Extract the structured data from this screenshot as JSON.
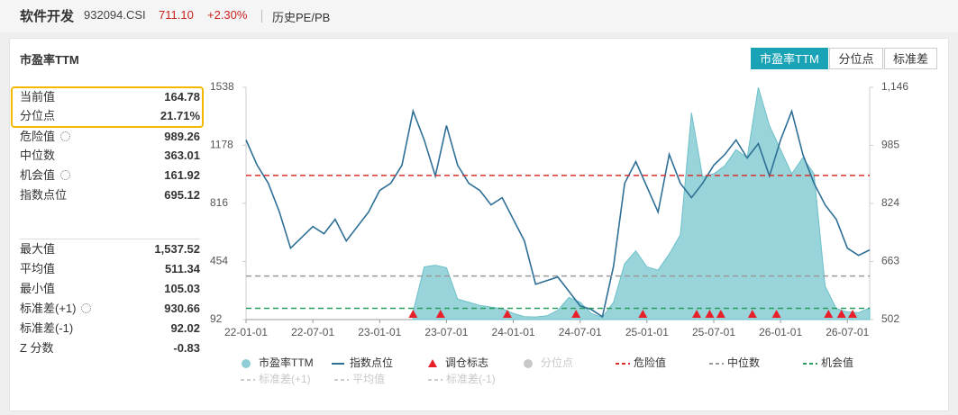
{
  "header": {
    "name": "软件开发",
    "code": "932094.CSI",
    "price": "711.10",
    "change": "+2.30%",
    "link": "历史PE/PB"
  },
  "panel_title": "市盈率TTM",
  "tabs": [
    "市盈率TTM",
    "分位点",
    "标准差"
  ],
  "stats": {
    "current_label": "当前值",
    "percentile_label": "分位点",
    "percentile": "21.71%",
    "max_label": "最大值",
    "max": "1,537.52",
    "min_label": "最小值",
    "min": 105.03,
    "z_label": "Z 分数",
    "z": -0.83
  },
  "chart_data": {
    "type": "line",
    "x": [
      "22-01-01",
      "22-02-01",
      "22-03-01",
      "22-04-01",
      "22-05-01",
      "22-06-01",
      "22-07-01",
      "22-08-01",
      "22-09-01",
      "22-10-01",
      "22-11-01",
      "22-12-01",
      "23-01-01",
      "23-02-01",
      "23-03-01",
      "23-04-01",
      "23-05-01",
      "23-06-01",
      "23-07-01",
      "23-08-01",
      "23-09-01",
      "23-10-01",
      "23-11-01",
      "23-12-01",
      "24-01-01",
      "24-02-01",
      "24-03-01",
      "24-04-01",
      "24-05-01",
      "24-06-01",
      "24-07-01",
      "24-08-01",
      "24-09-01",
      "24-10-01",
      "24-11-01",
      "24-12-01",
      "25-01-01",
      "25-02-01",
      "25-03-01",
      "25-04-01",
      "25-05-01",
      "25-06-01",
      "25-07-01",
      "25-08-01",
      "25-09-01",
      "25-10-01",
      "25-11-01",
      "25-12-01",
      "26-01-01",
      "26-02-01",
      "26-03-01",
      "26-04-01",
      "26-05-01",
      "26-06-01",
      "26-07-01",
      "26-08-01",
      "26-09-01"
    ],
    "xlim": [
      "22-01-01",
      "26-09-01"
    ],
    "xticks": [
      "22-01-01",
      "22-07-01",
      "23-01-01",
      "23-07-01",
      "24-01-01",
      "24-07-01",
      "25-01-01",
      "25-07-01",
      "26-01-01",
      "26-07-01"
    ],
    "ylim": [
      92,
      1538
    ],
    "yticks": [
      92,
      454,
      816,
      1178,
      1538
    ],
    "y2lim": [
      502,
      1146
    ],
    "y2ticks": [
      502,
      663,
      824,
      985,
      {
        "value": 1146,
        "label": "1,146"
      }
    ],
    "series": [
      {
        "name": "市盈率TTM",
        "color": "#8ecfd6",
        "axis": "y",
        "values": [
          null,
          null,
          null,
          null,
          null,
          null,
          null,
          null,
          null,
          null,
          null,
          null,
          null,
          null,
          null,
          140,
          420,
          430,
          415,
          220,
          200,
          180,
          170,
          160,
          130,
          110,
          108,
          115,
          150,
          230,
          200,
          130,
          105.03,
          200,
          440,
          520,
          420,
          400,
          500,
          620,
          1380,
          980,
          1000,
          1050,
          1150,
          1100,
          1537.52,
          1300,
          1150,
          1000,
          1100,
          1000,
          300,
          160,
          140,
          135,
          164.78
        ]
      },
      {
        "name": "指数点位",
        "color": "#2e6f96",
        "axis": "y2",
        "values": [
          1000,
          930,
          880,
          800,
          700,
          730,
          760,
          740,
          780,
          720,
          760,
          800,
          860,
          880,
          930,
          1080,
          1000,
          900,
          1040,
          930,
          880,
          860,
          820,
          840,
          780,
          720,
          600,
          610,
          620,
          580,
          540,
          530,
          510,
          650,
          880,
          940,
          870,
          800,
          960,
          880,
          840,
          880,
          930,
          960,
          1000,
          950,
          990,
          900,
          1000,
          1080,
          960,
          880,
          820,
          780,
          700,
          680,
          695.12
        ]
      }
    ],
    "markers": {
      "name": "调仓标志",
      "color": "#e8202a",
      "x": [
        "23-04-01",
        "23-06-15",
        "23-12-15",
        "24-06-20",
        "24-12-20",
        "25-05-15",
        "25-06-20",
        "25-07-20",
        "25-10-15",
        "25-12-20",
        "26-05-10",
        "26-06-15",
        "26-07-15"
      ]
    },
    "ref_lines": [
      {
        "name": "危险值",
        "value": 989.26,
        "color": "#d9302c"
      },
      {
        "name": "中位数",
        "value": 363.01,
        "color": "#9a9a9a"
      },
      {
        "name": "机会值",
        "value": 161.92,
        "color": "#2a9d5c"
      }
    ],
    "hidden_series": {
      "name": "分位点",
      "color": "#c8c8c8"
    },
    "hidden_lines": [
      {
        "name": "标准差(+1)",
        "value": 930.66,
        "color": "#cccccc"
      },
      {
        "name": "平均值",
        "value": 511.34,
        "color": "#cccccc"
      },
      {
        "name": "标准差(-1)",
        "value": 92.02,
        "color": "#cccccc"
      }
    ]
  }
}
